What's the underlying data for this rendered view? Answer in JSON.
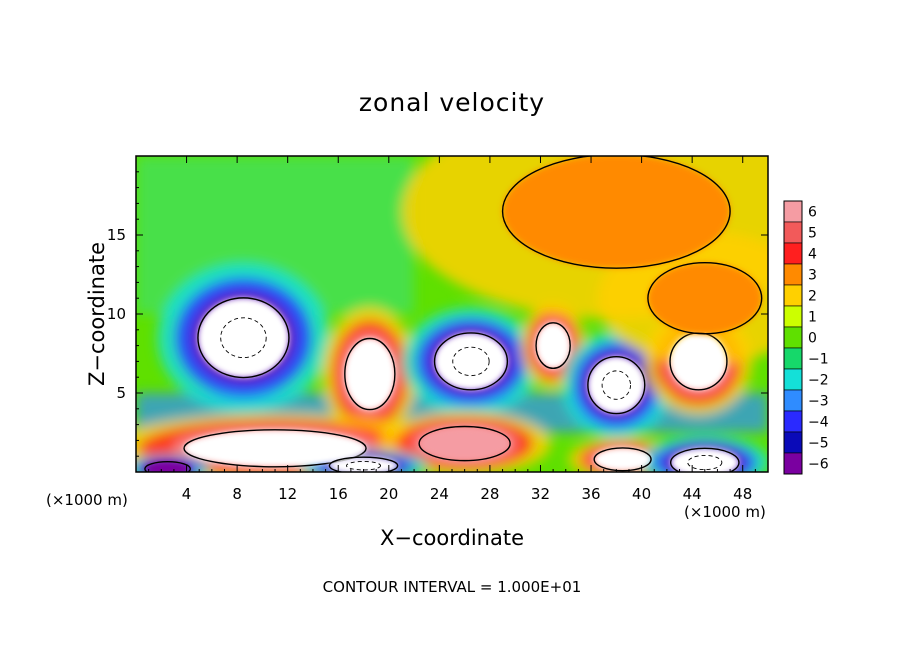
{
  "chart_data": {
    "type": "heatmap",
    "title": "zonal velocity",
    "xlabel": "X−coordinate",
    "ylabel": "Z−coordinate",
    "x_unit_label": "(×1000 m)",
    "xlim": [
      0,
      50
    ],
    "ylim": [
      0,
      20
    ],
    "x_ticks": [
      "4",
      "8",
      "12",
      "16",
      "20",
      "24",
      "28",
      "32",
      "36",
      "40",
      "44",
      "48"
    ],
    "x_tick_values": [
      4,
      8,
      12,
      16,
      20,
      24,
      28,
      32,
      36,
      40,
      44,
      48
    ],
    "y_ticks": [
      "5",
      "10",
      "15"
    ],
    "y_tick_values": [
      5,
      10,
      15
    ],
    "colorbar": {
      "labels": [
        "6",
        "5",
        "4",
        "3",
        "2",
        "1",
        "0",
        "−1",
        "−2",
        "−3",
        "−4",
        "−5",
        "−6"
      ],
      "min": -6,
      "max": 6,
      "colors": [
        "#f59ca3",
        "#f25a5a",
        "#ff1f1f",
        "#ff8a00",
        "#ffd000",
        "#ccff00",
        "#5fe000",
        "#16d86a",
        "#14e0d8",
        "#2f8cff",
        "#2a2aff",
        "#0a0ab8",
        "#7a00a0"
      ]
    },
    "contour_interval_note": "CONTOUR INTERVAL = 1.000E+01",
    "features": [
      {
        "x": 8.5,
        "z": 8.5,
        "rx": 4.0,
        "rz": 2.8,
        "value": -7
      },
      {
        "x": 18.5,
        "z": 6.2,
        "rx": 2.2,
        "rz": 2.5,
        "value": 6.5
      },
      {
        "x": 26.5,
        "z": 7.0,
        "rx": 3.2,
        "rz": 2.0,
        "value": -7
      },
      {
        "x": 33.0,
        "z": 8.0,
        "rx": 1.5,
        "rz": 1.6,
        "value": 6.5
      },
      {
        "x": 38.0,
        "z": 5.5,
        "rx": 2.5,
        "rz": 2.0,
        "value": -7
      },
      {
        "x": 44.5,
        "z": 7.0,
        "rx": 2.5,
        "rz": 2.0,
        "value": 6.5
      },
      {
        "x": 11.0,
        "z": 1.5,
        "rx": 8.0,
        "rz": 1.3,
        "value": 6.5
      },
      {
        "x": 26.0,
        "z": 1.8,
        "rx": 4.0,
        "rz": 1.2,
        "value": 6.0
      },
      {
        "x": 38.5,
        "z": 0.8,
        "rx": 2.5,
        "rz": 0.8,
        "value": 6.5
      },
      {
        "x": 18.0,
        "z": 0.4,
        "rx": 3.0,
        "rz": 0.6,
        "value": -6.5
      },
      {
        "x": 45.0,
        "z": 0.6,
        "rx": 3.0,
        "rz": 1.0,
        "value": -7
      },
      {
        "x": 2.5,
        "z": 0.2,
        "rx": 2.0,
        "rz": 0.5,
        "value": -6
      },
      {
        "x": 38.0,
        "z": 16.5,
        "rx": 10.0,
        "rz": 4.0,
        "value": 3.0
      },
      {
        "x": 45.0,
        "z": 11.0,
        "rx": 5.0,
        "rz": 2.5,
        "value": 3.0
      }
    ]
  }
}
